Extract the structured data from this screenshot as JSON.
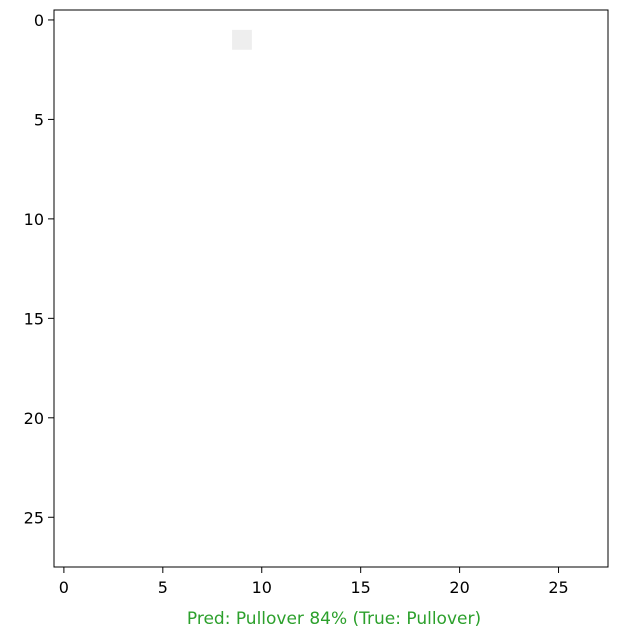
{
  "chart_data": {
    "type": "heatmap",
    "title": "",
    "xlabel": "Pred: Pullover 84% (True: Pullover)",
    "ylabel": "",
    "xlim": [
      -0.5,
      27.5
    ],
    "ylim": [
      27.5,
      -0.5
    ],
    "x_ticks": [
      0,
      5,
      10,
      15,
      20,
      25
    ],
    "y_ticks": [
      0,
      5,
      10,
      15,
      20,
      25
    ],
    "x_tick_labels": [
      "0",
      "5",
      "10",
      "15",
      "20",
      "25"
    ],
    "y_tick_labels": [
      "0",
      "5",
      "10",
      "15",
      "20",
      "25"
    ],
    "colormap": "binary",
    "grid": false,
    "rows": 28,
    "cols": 28,
    "values": [
      "0000000000000000000000000000",
      "0000000001000000000000000000",
      "0000000000000000000000000000",
      "0000000000000000000000000000",
      "0000000000000000000000000000",
      "0000000000000000000000000000",
      "0000000000000000000000000000",
      "0000000000000000000000000000",
      "0000000000000000000000000000",
      "0000000000000000000000000000",
      "0000000000000000000000000000",
      "0000000000000000000000000000",
      "0000000000000000000000000000",
      "0000000000000000000000000000",
      "0000000000000000000000000000",
      "0000000000000000000000000000",
      "0000000000000000000000000000",
      "0000000000000000000000000000",
      "0000000000000000000000000000",
      "0000000000000000000000000000",
      "0000000000000000000000000000",
      "0000000000000000000000000000",
      "0000000000000000000000000000",
      "0000000000000000000000000000",
      "0000000000000000000000000000",
      "0000000000000000000000000000",
      "0000000000000000000000000000",
      "0000000000000000000000000000"
    ],
    "caption_color": "#2ca02c"
  }
}
